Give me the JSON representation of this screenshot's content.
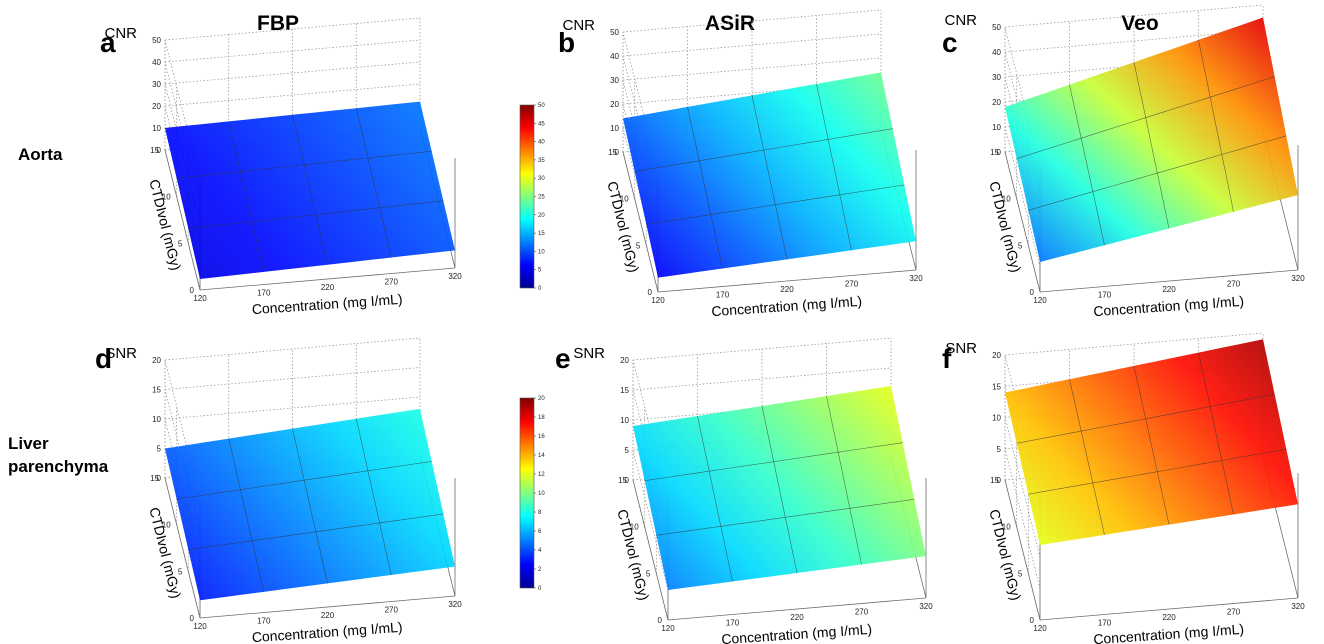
{
  "figure": {
    "column_titles": [
      "FBP",
      "ASiR",
      "Veo"
    ],
    "row_labels": [
      [
        "Aorta"
      ],
      [
        "Liver",
        "parenchyma"
      ]
    ],
    "colormap": [
      "#00008f",
      "#0000ff",
      "#0080ff",
      "#00ffff",
      "#80ff80",
      "#ffff00",
      "#ff8000",
      "#ff0000",
      "#800000"
    ]
  },
  "chart_data": [
    {
      "panel": "a",
      "type": "surface",
      "column": "FBP",
      "row": "Aorta",
      "zlabel": "CNR",
      "xlabel": "Concentration (mg I/mL)",
      "ylabel": "CTDIvol (mGy)",
      "ylabel_sub": "vol",
      "x_ticks": [
        "120",
        "170",
        "220",
        "270",
        "320"
      ],
      "y_ticks": [
        "0",
        "5",
        "10",
        "15"
      ],
      "z_ticks": [
        "0",
        "10",
        "20",
        "30",
        "40",
        "50"
      ],
      "xlim": [
        120,
        320
      ],
      "ylim": [
        0,
        15
      ],
      "zlim": [
        0,
        50
      ],
      "z_corners": {
        "x120_y15": 10,
        "x320_y15": 12,
        "x120_y0": 5,
        "x320_y0": 8
      }
    },
    {
      "panel": "b",
      "type": "surface",
      "column": "ASiR",
      "row": "Aorta",
      "zlabel": "CNR",
      "xlabel": "Concentration (mg I/mL)",
      "ylabel": "CTDIvol (mGy)",
      "ylabel_sub": "vol",
      "x_ticks": [
        "120",
        "170",
        "220",
        "270",
        "320"
      ],
      "y_ticks": [
        "0",
        "5",
        "10",
        "15"
      ],
      "z_ticks": [
        "0",
        "10",
        "20",
        "30",
        "40",
        "50"
      ],
      "xlim": [
        120,
        320
      ],
      "ylim": [
        0,
        15
      ],
      "zlim": [
        0,
        50
      ],
      "z_corners": {
        "x120_y15": 14,
        "x320_y15": 24,
        "x120_y0": 6,
        "x320_y0": 12
      }
    },
    {
      "panel": "c",
      "type": "surface",
      "column": "Veo",
      "row": "Aorta",
      "zlabel": "CNR",
      "xlabel": "Concentration (mg I/mL)",
      "ylabel": "CTDIvol (mGy)",
      "ylabel_sub": "vol",
      "x_ticks": [
        "120",
        "170",
        "220",
        "270",
        "320"
      ],
      "y_ticks": [
        "0",
        "5",
        "10",
        "15"
      ],
      "z_ticks": [
        "0",
        "10",
        "20",
        "30",
        "40",
        "50"
      ],
      "xlim": [
        120,
        320
      ],
      "ylim": [
        0,
        15
      ],
      "zlim": [
        0,
        50
      ],
      "z_corners": {
        "x120_y15": 18,
        "x320_y15": 45,
        "x120_y0": 12,
        "x320_y0": 30
      }
    },
    {
      "panel": "d",
      "type": "surface",
      "column": "FBP",
      "row": "Liver parenchyma",
      "zlabel": "SNR",
      "xlabel": "Concentration (mg I/mL)",
      "ylabel": "CTDIvol (mGy)",
      "ylabel_sub": "vol",
      "x_ticks": [
        "120",
        "170",
        "220",
        "270",
        "320"
      ],
      "y_ticks": [
        "0",
        "5",
        "10",
        "15"
      ],
      "z_ticks": [
        "0",
        "5",
        "10",
        "15",
        "20"
      ],
      "xlim": [
        120,
        320
      ],
      "ylim": [
        0,
        15
      ],
      "zlim": [
        0,
        20
      ],
      "z_corners": {
        "x120_y15": 5,
        "x320_y15": 8,
        "x120_y0": 3,
        "x320_y0": 5
      }
    },
    {
      "panel": "e",
      "type": "surface",
      "column": "ASiR",
      "row": "Liver parenchyma",
      "zlabel": "SNR",
      "xlabel": "Concentration (mg I/mL)",
      "ylabel": "CTDIvol (mGy)",
      "ylabel_sub": "vol",
      "x_ticks": [
        "120",
        "170",
        "220",
        "270",
        "320"
      ],
      "y_ticks": [
        "0",
        "5",
        "10",
        "15"
      ],
      "z_ticks": [
        "0",
        "5",
        "10",
        "15",
        "20"
      ],
      "xlim": [
        120,
        320
      ],
      "ylim": [
        0,
        15
      ],
      "zlim": [
        0,
        20
      ],
      "z_corners": {
        "x120_y15": 9,
        "x320_y15": 12,
        "x120_y0": 5,
        "x320_y0": 7
      }
    },
    {
      "panel": "f",
      "type": "surface",
      "column": "Veo",
      "row": "Liver parenchyma",
      "zlabel": "SNR",
      "xlabel": "Concentration (mg I/mL)",
      "ylabel": "CTDIvol (mGy)",
      "ylabel_sub": "vol",
      "x_ticks": [
        "120",
        "170",
        "220",
        "270",
        "320"
      ],
      "y_ticks": [
        "0",
        "5",
        "10",
        "15"
      ],
      "z_ticks": [
        "0",
        "5",
        "10",
        "15",
        "20"
      ],
      "xlim": [
        120,
        320
      ],
      "ylim": [
        0,
        15
      ],
      "zlim": [
        0,
        20
      ],
      "z_corners": {
        "x120_y15": 14,
        "x320_y15": 19,
        "x120_y0": 12,
        "x320_y0": 15
      }
    }
  ],
  "colorbars": [
    {
      "name": "colorbar-cnr",
      "ticks": [
        "0",
        "5",
        "10",
        "15",
        "20",
        "25",
        "30",
        "35",
        "40",
        "45",
        "50"
      ],
      "range": [
        0,
        50
      ]
    },
    {
      "name": "colorbar-snr",
      "ticks": [
        "0",
        "2",
        "4",
        "6",
        "8",
        "10",
        "12",
        "14",
        "16",
        "18",
        "20"
      ],
      "range": [
        0,
        20
      ]
    }
  ]
}
